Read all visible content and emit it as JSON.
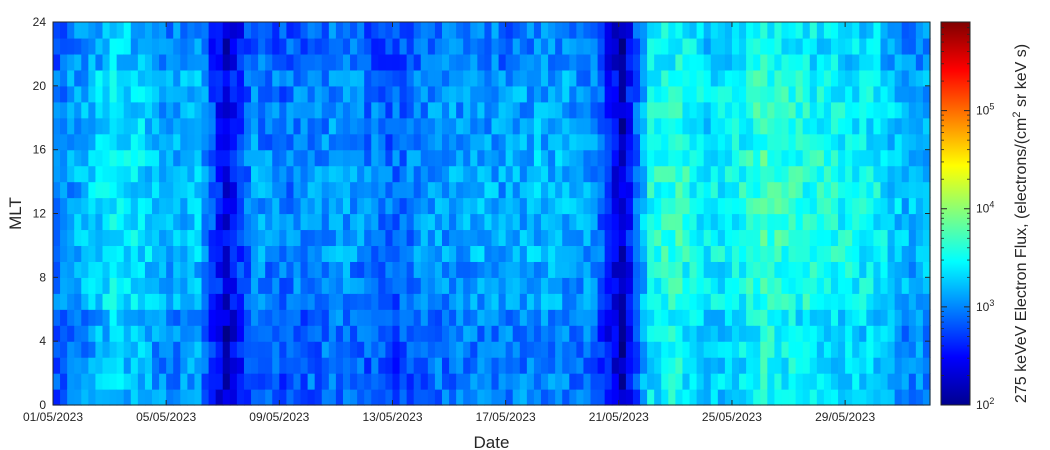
{
  "chart_data": {
    "type": "heatmap",
    "title": "",
    "xlabel": "Date",
    "ylabel": "MLT",
    "x_range_days": [
      "2023-05-01",
      "2023-06-01"
    ],
    "x_ticks": [
      "01/05/2023",
      "05/05/2023",
      "09/05/2023",
      "13/05/2023",
      "17/05/2023",
      "21/05/2023",
      "25/05/2023",
      "29/05/2023"
    ],
    "ylim": [
      0,
      24
    ],
    "y_ticks": [
      "0",
      "4",
      "8",
      "12",
      "16",
      "20",
      "24"
    ],
    "y_bin_hours": 1,
    "colormap": "jet",
    "colorbar": {
      "label_parts": [
        "275 keVeV Electron Flux, (electrons/(cm",
        "2",
        " sr keV s)"
      ],
      "scale": "log",
      "range": [
        100,
        800000
      ],
      "tick_bases": [
        "10",
        "10",
        "10",
        "10"
      ],
      "tick_exponents": [
        "2",
        "3",
        "4",
        "5"
      ]
    },
    "daily_mean_log10_flux": [
      2.95,
      3.15,
      3.4,
      3.3,
      3.1,
      3.2,
      2.35,
      3.05,
      2.9,
      3.0,
      3.05,
      2.95,
      2.85,
      3.0,
      3.05,
      3.1,
      3.05,
      3.15,
      3.1,
      3.0,
      2.25,
      3.5,
      3.6,
      3.35,
      3.45,
      3.65,
      3.55,
      3.5,
      3.45,
      3.4,
      3.15
    ],
    "grid": false
  }
}
